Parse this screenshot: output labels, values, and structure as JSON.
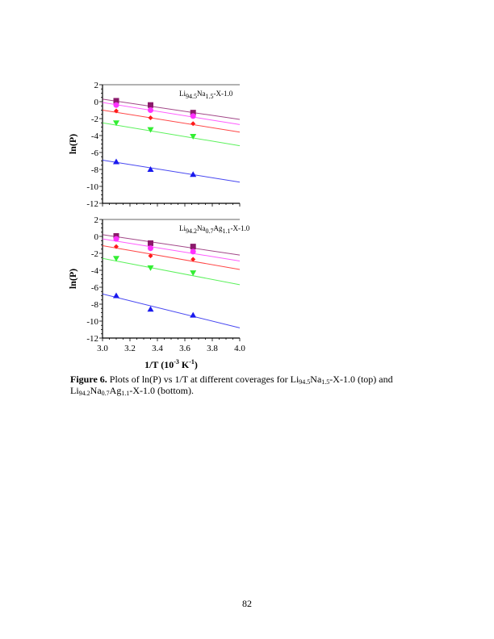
{
  "chart_data": [
    {
      "type": "scatter",
      "panel": "top",
      "annotation": {
        "base": "Li",
        "parts": [
          [
            "94.5",
            "Na"
          ],
          [
            "1.5",
            "-X-1.0"
          ]
        ]
      },
      "annotation_text": "Li94.5Na1.5-X-1.0",
      "ylabel": "ln(P)",
      "xlabel": "",
      "xlim": [
        3.0,
        4.0
      ],
      "ylim": [
        -12,
        2
      ],
      "yticks": [
        "2",
        "0",
        "-2",
        "-4",
        "-6",
        "-8",
        "-10",
        "-12"
      ],
      "x": [
        3.1,
        3.35,
        3.66
      ],
      "series": [
        {
          "marker": "square",
          "color": "#8b1a6b",
          "values": [
            0.1,
            -0.4,
            -1.3
          ],
          "fit": [
            0.3,
            -2.1
          ]
        },
        {
          "marker": "circle",
          "color": "#ff33ff",
          "values": [
            -0.4,
            -1.0,
            -1.7
          ],
          "fit": [
            -0.1,
            -2.7
          ]
        },
        {
          "marker": "diamond",
          "color": "#ff1a1a",
          "values": [
            -1.1,
            -1.9,
            -2.6
          ],
          "fit": [
            -1.0,
            -3.6
          ]
        },
        {
          "marker": "triangle-down",
          "color": "#33ee33",
          "values": [
            -2.5,
            -3.3,
            -4.1
          ],
          "fit": [
            -2.5,
            -5.2
          ]
        },
        {
          "marker": "triangle-up",
          "color": "#1a1aee",
          "values": [
            -7.1,
            -8.0,
            -8.6
          ],
          "fit": [
            -6.9,
            -9.5
          ]
        }
      ]
    },
    {
      "type": "scatter",
      "panel": "bottom",
      "annotation": {
        "base": "Li",
        "parts": [
          [
            "94.2",
            "Na"
          ],
          [
            "0.7",
            "Ag"
          ],
          [
            "1.1",
            "-X-1.0"
          ]
        ]
      },
      "annotation_text": "Li94.2Na0.7Ag1.1-X-1.0",
      "ylabel": "ln(P)",
      "xlabel": "1/T (10-3 K-1)",
      "xlim": [
        3.0,
        4.0
      ],
      "ylim": [
        -12,
        2
      ],
      "xticks": [
        "3.0",
        "3.2",
        "3.4",
        "3.6",
        "3.8",
        "4.0"
      ],
      "yticks": [
        "2",
        "0",
        "-2",
        "-4",
        "-6",
        "-8",
        "-10",
        "-12"
      ],
      "x": [
        3.1,
        3.35,
        3.66
      ],
      "series": [
        {
          "marker": "square",
          "color": "#8b1a6b",
          "values": [
            0.05,
            -0.8,
            -1.2
          ],
          "fit": [
            0.2,
            -2.2
          ]
        },
        {
          "marker": "circle",
          "color": "#ff33ff",
          "values": [
            -0.3,
            -1.4,
            -1.8
          ],
          "fit": [
            -0.3,
            -2.9
          ]
        },
        {
          "marker": "diamond",
          "color": "#ff1a1a",
          "values": [
            -1.2,
            -2.3,
            -2.7
          ],
          "fit": [
            -1.1,
            -3.9
          ]
        },
        {
          "marker": "triangle-down",
          "color": "#33ee33",
          "values": [
            -2.6,
            -3.7,
            -4.3
          ],
          "fit": [
            -2.6,
            -5.7
          ]
        },
        {
          "marker": "triangle-up",
          "color": "#1a1aee",
          "values": [
            -7.0,
            -8.6,
            -9.3
          ],
          "fit": [
            -6.8,
            -10.8
          ]
        }
      ]
    }
  ],
  "xlabel_parts": {
    "a": "1/T (10",
    "b": "-3",
    "c": " K",
    "d": "-1",
    "e": ")"
  },
  "caption": {
    "label": "Figure 6.",
    "t1": "  Plots of ln(P) vs 1/T at different coverages for Li",
    "s1": "94.5",
    "t2": "Na",
    "s2": "1.5",
    "t3": "-X-1.0 (top) and",
    "t4": "Li",
    "s3": "94.2",
    "t5": "Na",
    "s4": "0.7",
    "t6": "Ag",
    "s5": "1.1",
    "t7": "-X-1.0 (bottom)."
  },
  "page_number": "82"
}
